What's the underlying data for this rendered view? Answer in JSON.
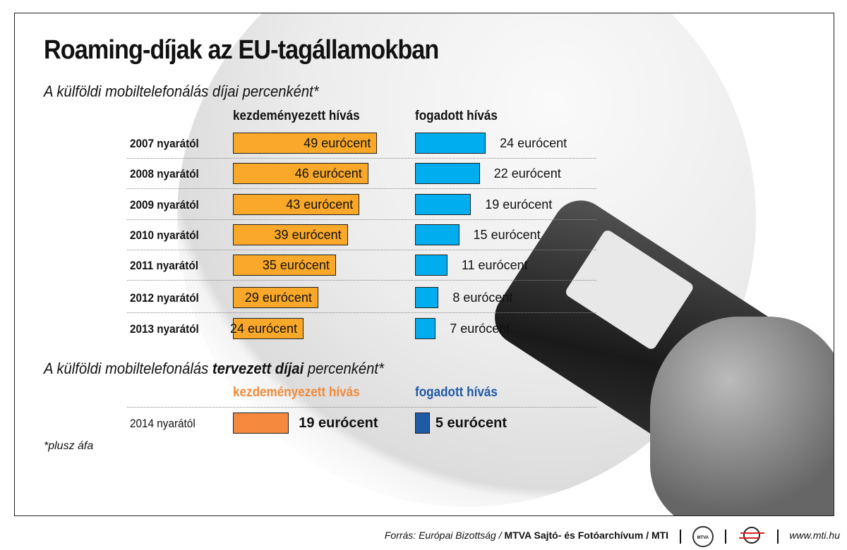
{
  "title": "Roaming-díjak az EU-tagállamokban",
  "subtitle": "A külföldi mobiltelefonálás díjai percenként*",
  "subtitle2": {
    "pre": "A külföldi mobiltelefonálás ",
    "bold": "tervezett díjai",
    "post": " percenként*"
  },
  "footnote": "*plusz áfa",
  "footer": {
    "source_italic": "Forrás: Európai Bizottság / ",
    "source_bold": "MTVA Sajtó- és Fotóarchívum / MTI",
    "logo1": "MTVA",
    "url": "www.mti.hu"
  },
  "colors": {
    "outgoing": "#F9A82A",
    "incoming": "#00AEEF",
    "outgoing_planned": "#F58A3E",
    "incoming_planned": "#1F5AA6"
  },
  "chart_data": {
    "type": "bar",
    "unit": "eurócent",
    "series_headers": [
      "kezdeményezett hívás",
      "fogadott hívás"
    ],
    "categories": [
      "2007 nyarától",
      "2008 nyarától",
      "2009 nyarától",
      "2010 nyarától",
      "2011 nyarától",
      "2012 nyarától",
      "2013 nyarától"
    ],
    "series": [
      {
        "name": "kezdeményezett hívás",
        "values": [
          49,
          46,
          43,
          39,
          35,
          29,
          24
        ],
        "labels": [
          "49 eurócent",
          "46 eurócent",
          "43 eurócent",
          "39 eurócent",
          "35 eurócent",
          "29 eurócent",
          "24 eurócent"
        ]
      },
      {
        "name": "fogadott hívás",
        "values": [
          24,
          22,
          19,
          15,
          11,
          8,
          7
        ],
        "labels": [
          "24 eurócent",
          "22 eurócent",
          "19 eurócent",
          "15 eurócent",
          "11 eurócent",
          "8 eurócent",
          "7 eurócent"
        ]
      }
    ],
    "planned": {
      "series_headers": [
        "kezdeményezett hívás",
        "fogadott hívás"
      ],
      "category": "2014 nyarától",
      "values": [
        19,
        5
      ],
      "labels": [
        "19 eurócent",
        "5 eurócent"
      ]
    }
  }
}
